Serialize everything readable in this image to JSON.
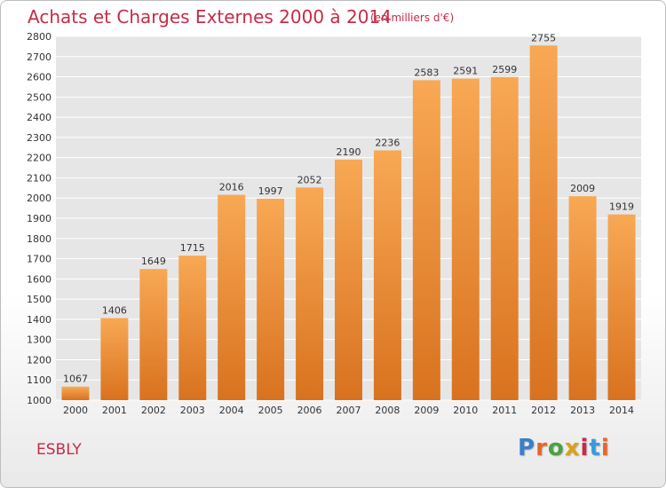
{
  "header": {
    "title": "Achats et Charges Externes 2000 à 2014",
    "subtitle": "(en milliers d'€)"
  },
  "footer": {
    "commune": "ESBLY",
    "logo_letters": [
      "P",
      "r",
      "o",
      "x",
      "i",
      "t",
      "i"
    ],
    "logo_colors": [
      "#3a7fc9",
      "#e6662d",
      "#4da043",
      "#d9a21b",
      "#c62b47",
      "#3a9ad9",
      "#e6662d"
    ]
  },
  "colors": {
    "bar_top": "#f8a854",
    "bar_bottom": "#d9721f",
    "grid": "#ffffff",
    "plot_bg": "#e6e6e6",
    "text": "#333333"
  },
  "chart_data": {
    "type": "bar",
    "title": "Achats et Charges Externes 2000 à 2014",
    "subtitle": "(en milliers d'€)",
    "categories": [
      "2000",
      "2001",
      "2002",
      "2003",
      "2004",
      "2005",
      "2006",
      "2007",
      "2008",
      "2009",
      "2010",
      "2011",
      "2012",
      "2013",
      "2014"
    ],
    "values": [
      1067,
      1406,
      1649,
      1715,
      2016,
      1997,
      2052,
      2190,
      2236,
      2583,
      2591,
      2599,
      2755,
      2009,
      1919
    ],
    "data_labels": [
      "1067",
      "1406",
      "1649",
      "1715",
      "2016",
      "1997",
      "2052",
      "2190",
      "2236",
      "2583",
      "2591",
      "2599",
      "2755",
      "2009",
      "1919"
    ],
    "yticks": [
      "1000",
      "1100",
      "1200",
      "1300",
      "1400",
      "1500",
      "1600",
      "1700",
      "1800",
      "1900",
      "2000",
      "2100",
      "2200",
      "2300",
      "2400",
      "2500",
      "2600",
      "2700",
      "2800"
    ],
    "ylim": [
      1000,
      2800
    ],
    "ystep": 100,
    "grid": true,
    "legend": false
  }
}
